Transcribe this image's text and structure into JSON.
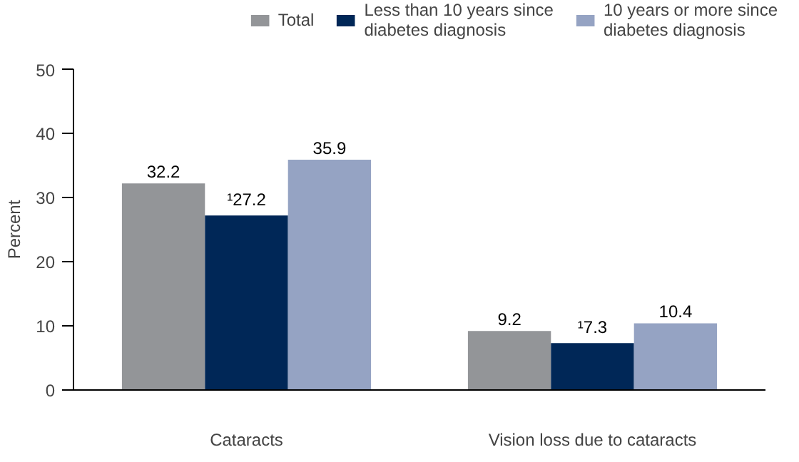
{
  "chart_data": {
    "type": "bar",
    "ylabel": "Percent",
    "categories": [
      "Cataracts",
      "Vision loss due to cataracts"
    ],
    "series": [
      {
        "name": "Total",
        "color": "#939598",
        "values": [
          32.2,
          9.2
        ],
        "value_labels": [
          "32.2",
          "9.2"
        ]
      },
      {
        "name": "Less than 10 years since diabetes diagnosis",
        "color": "#002757",
        "values": [
          27.2,
          7.3
        ],
        "value_labels": [
          "¹27.2",
          "¹7.3"
        ]
      },
      {
        "name": "10 years or more since diabetes diagnosis",
        "color": "#95a3c3",
        "values": [
          35.9,
          10.4
        ],
        "value_labels": [
          "35.9",
          "10.4"
        ]
      }
    ],
    "ylim": [
      0,
      50
    ],
    "yticks": [
      0,
      10,
      20,
      30,
      40,
      50
    ],
    "grid": false,
    "legend": "top right"
  }
}
